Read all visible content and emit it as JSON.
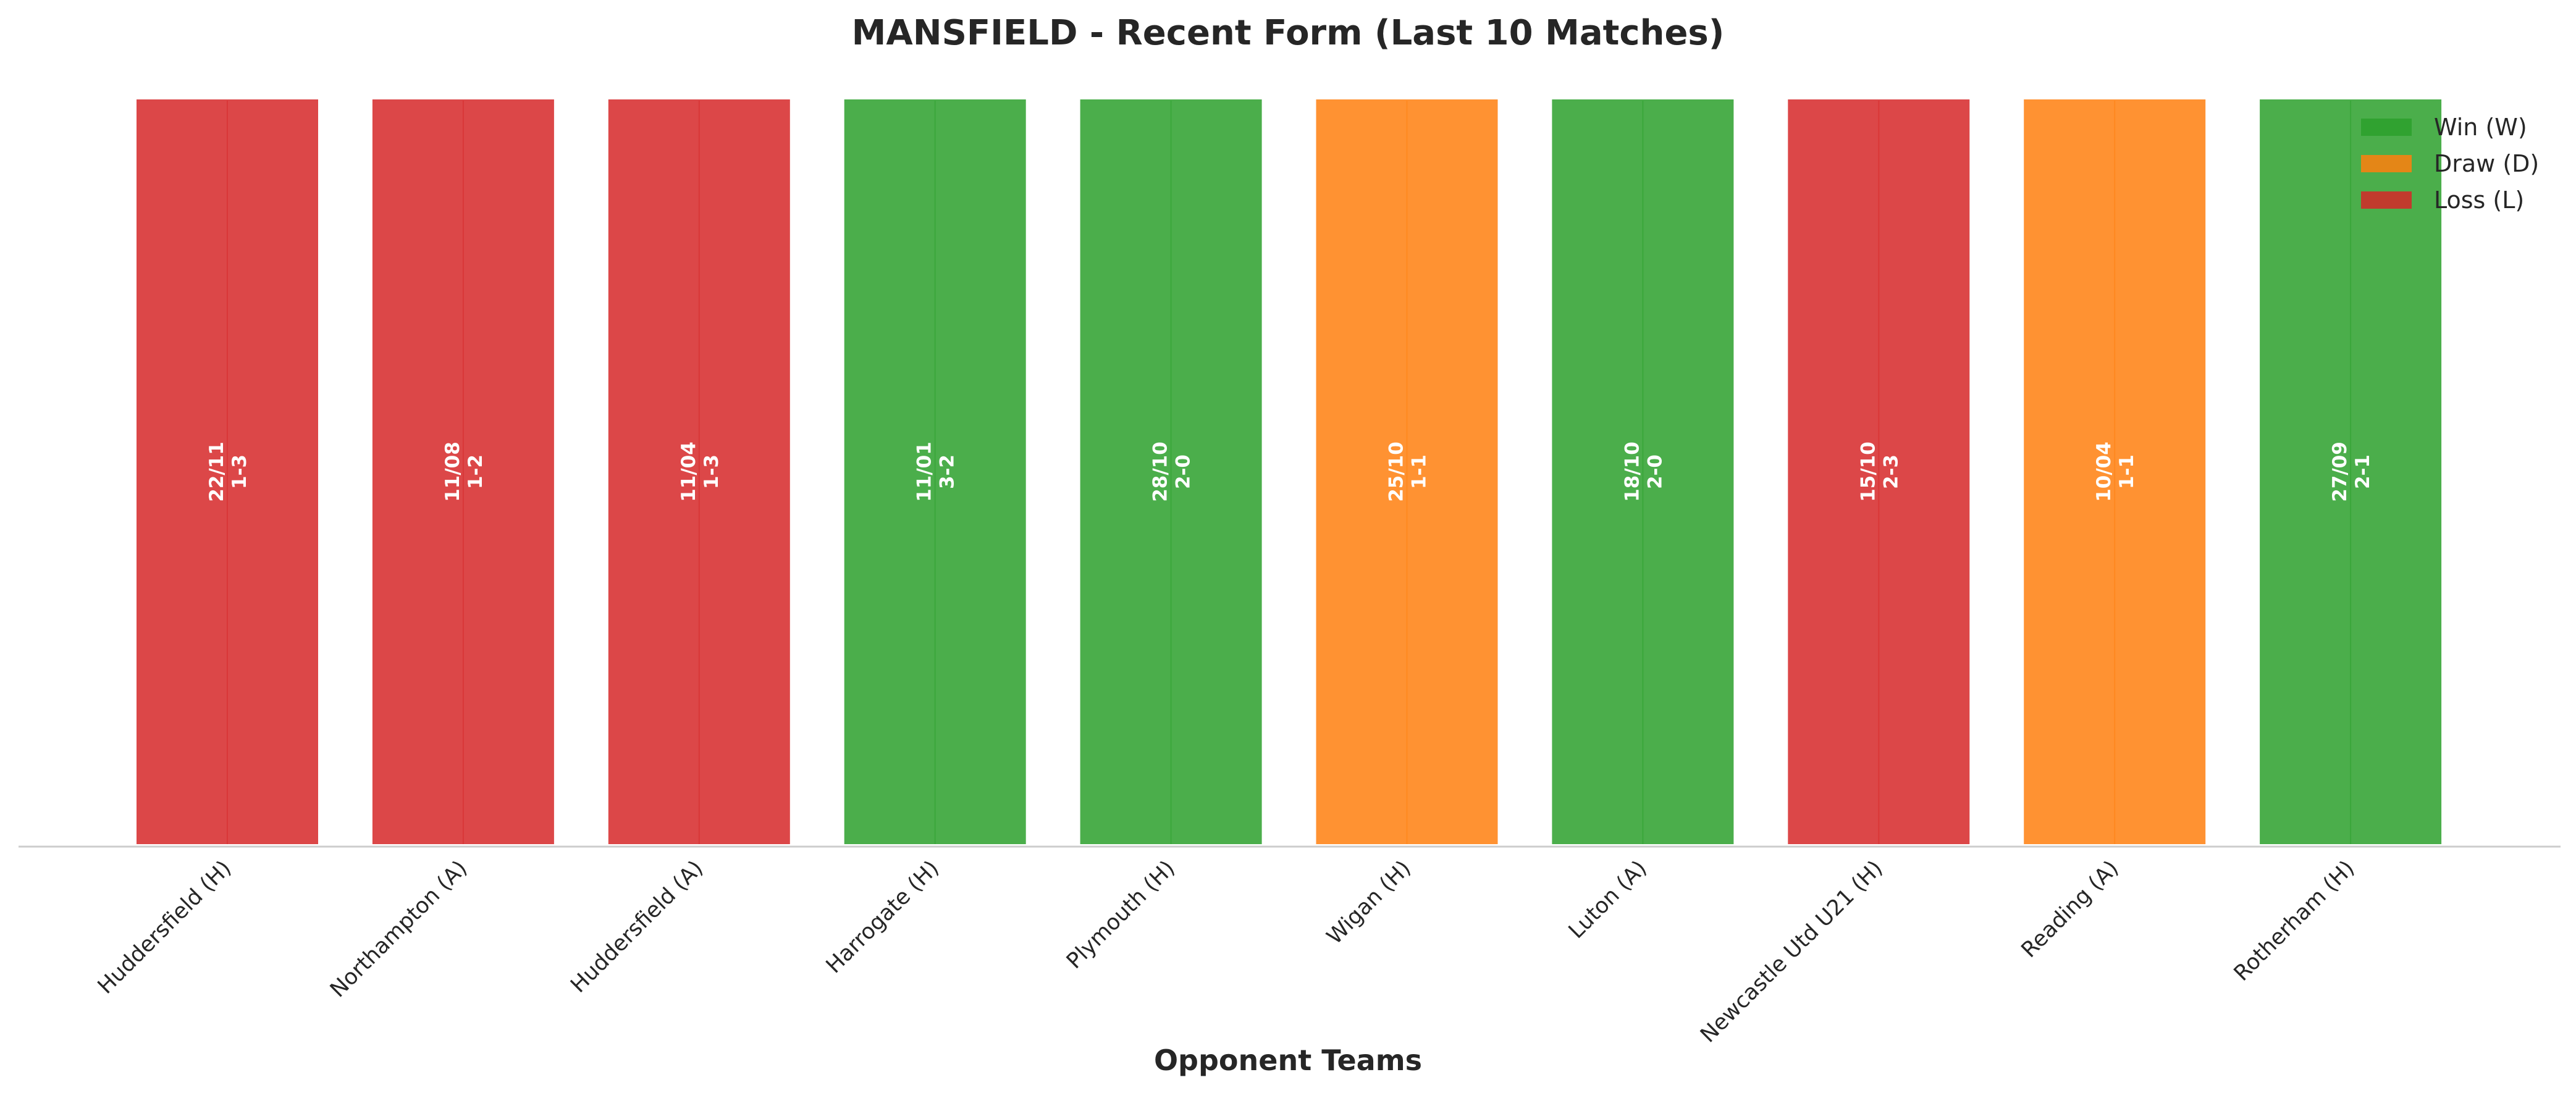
{
  "chart_data": {
    "type": "bar",
    "title": "MANSFIELD - Recent Form (Last 10 Matches)",
    "xlabel": "Opponent Teams",
    "ylabel": "",
    "categories": [
      "Huddersfield (H)",
      "Northampton (A)",
      "Huddersfield (A)",
      "Harrogate (H)",
      "Plymouth (H)",
      "Wigan (H)",
      "Luton (A)",
      "Newcastle Utd U21 (H)",
      "Reading (A)",
      "Rotherham (H)"
    ],
    "values": [
      1,
      1,
      1,
      1,
      1,
      1,
      1,
      1,
      1,
      1
    ],
    "results": [
      "L",
      "L",
      "L",
      "W",
      "W",
      "D",
      "W",
      "L",
      "D",
      "W"
    ],
    "dates": [
      "22/11",
      "11/08",
      "11/04",
      "11/01",
      "28/10",
      "25/10",
      "18/10",
      "15/10",
      "10/04",
      "27/09"
    ],
    "scores": [
      "1-3",
      "1-2",
      "1-3",
      "3-2",
      "2-0",
      "1-1",
      "2-0",
      "2-3",
      "1-1",
      "2-1"
    ],
    "ylim": [
      0,
      1
    ],
    "grid": false,
    "legend": {
      "placement": "top-right",
      "entries": [
        {
          "key": "W",
          "label": "Win (W)",
          "color": "#2ca02c"
        },
        {
          "key": "D",
          "label": "Draw (D)",
          "color": "#ff7f0e"
        },
        {
          "key": "L",
          "label": "Loss (L)",
          "color": "#d62728"
        }
      ]
    },
    "colors": {
      "W": "#2ca02c",
      "D": "#ff7f0e",
      "L": "#d62728"
    }
  }
}
